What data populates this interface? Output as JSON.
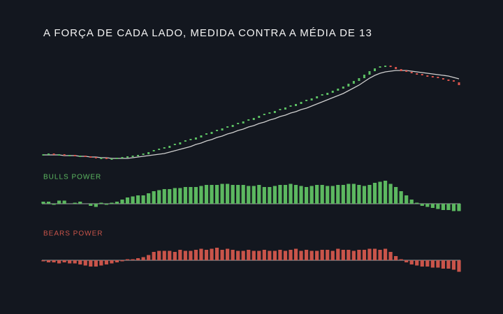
{
  "chart_data": [
    {
      "type": "candlestick",
      "title": "A FORÇA DE CADA LADO, MEDIDA CONTRA A MÉDIA DE 13",
      "close": [
        78,
        79,
        78,
        78,
        77,
        77,
        76,
        76,
        75,
        74,
        73,
        73,
        72,
        72,
        73,
        74,
        75,
        76,
        77,
        79,
        82,
        84,
        86,
        88,
        91,
        93,
        96,
        98,
        100,
        103,
        106,
        108,
        111,
        113,
        116,
        118,
        121,
        123,
        126,
        128,
        131,
        134,
        136,
        138,
        141,
        143,
        146,
        148,
        151,
        154,
        156,
        159,
        162,
        164,
        167,
        170,
        173,
        176,
        180,
        184,
        188,
        193,
        198,
        202,
        204,
        205,
        204,
        201,
        198,
        196,
        194,
        193,
        191,
        190,
        189,
        187,
        186,
        184,
        182,
        178
      ],
      "ma": [
        78,
        78,
        78,
        78,
        77,
        77,
        77,
        76,
        76,
        75,
        75,
        74,
        74,
        73,
        73,
        73,
        73,
        74,
        75,
        76,
        77,
        78,
        79,
        80,
        82,
        84,
        86,
        88,
        90,
        93,
        95,
        98,
        100,
        103,
        105,
        108,
        110,
        113,
        115,
        118,
        120,
        123,
        125,
        128,
        130,
        133,
        135,
        138,
        140,
        143,
        145,
        148,
        151,
        154,
        157,
        160,
        163,
        166,
        170,
        174,
        178,
        183,
        188,
        192,
        195,
        197,
        198,
        199,
        199,
        199,
        198,
        197,
        196,
        195,
        194,
        193,
        192,
        191,
        189,
        187
      ],
      "up_color": "#5cbf63",
      "down_color": "#d9544c",
      "ma_color": "#cfcfcf",
      "ylim": [
        70,
        210
      ]
    },
    {
      "type": "bar",
      "title": "BULLS POWER",
      "color": "#5cb860",
      "ylim": [
        -5,
        12
      ],
      "values": [
        1,
        1,
        -0.5,
        1.5,
        1.5,
        0,
        0.5,
        1,
        0,
        -1,
        -1.5,
        0.5,
        -0.5,
        0.5,
        1,
        2,
        3,
        3.5,
        4,
        4,
        5,
        6,
        6.5,
        7,
        7,
        7.5,
        7.5,
        8,
        8,
        8,
        8.5,
        9,
        9,
        9,
        9.5,
        9.5,
        9,
        9,
        9,
        8.5,
        8.5,
        9,
        8,
        8,
        8.5,
        9,
        9,
        9.5,
        9,
        8.5,
        8,
        8.5,
        9,
        9,
        8.5,
        8.5,
        9,
        9,
        9.5,
        9.5,
        9,
        8.5,
        9,
        10,
        10.5,
        11,
        9.5,
        8,
        6,
        4,
        2,
        0.5,
        -1,
        -1.5,
        -2,
        -2.5,
        -3,
        -3,
        -3.5,
        -3.5
      ]
    },
    {
      "type": "bar",
      "title": "BEARS POWER",
      "color": "#c9544a",
      "ylim": [
        -6,
        8
      ],
      "values": [
        -0.5,
        -1,
        -1,
        -1.5,
        -1,
        -1.5,
        -1.5,
        -2,
        -2.5,
        -3,
        -3,
        -2.5,
        -2,
        -1.5,
        -1,
        -0.5,
        0.5,
        0.5,
        1,
        1.5,
        2.5,
        4,
        4.5,
        4.5,
        4.5,
        4,
        5,
        4.5,
        4.5,
        5,
        5.5,
        5,
        5.5,
        6,
        5,
        5.5,
        5,
        4.5,
        4.5,
        5,
        4.5,
        4.5,
        5,
        4.5,
        4.5,
        5,
        4.5,
        5,
        5.5,
        4.5,
        5,
        4.5,
        4.5,
        5,
        5,
        4.5,
        5.5,
        5,
        5,
        4.5,
        5,
        5,
        5.5,
        5.5,
        5,
        5.5,
        4,
        2,
        0.5,
        -1,
        -2,
        -2.5,
        -3,
        -3,
        -3.5,
        -3.5,
        -4,
        -4,
        -4.5,
        -5.5
      ]
    }
  ]
}
